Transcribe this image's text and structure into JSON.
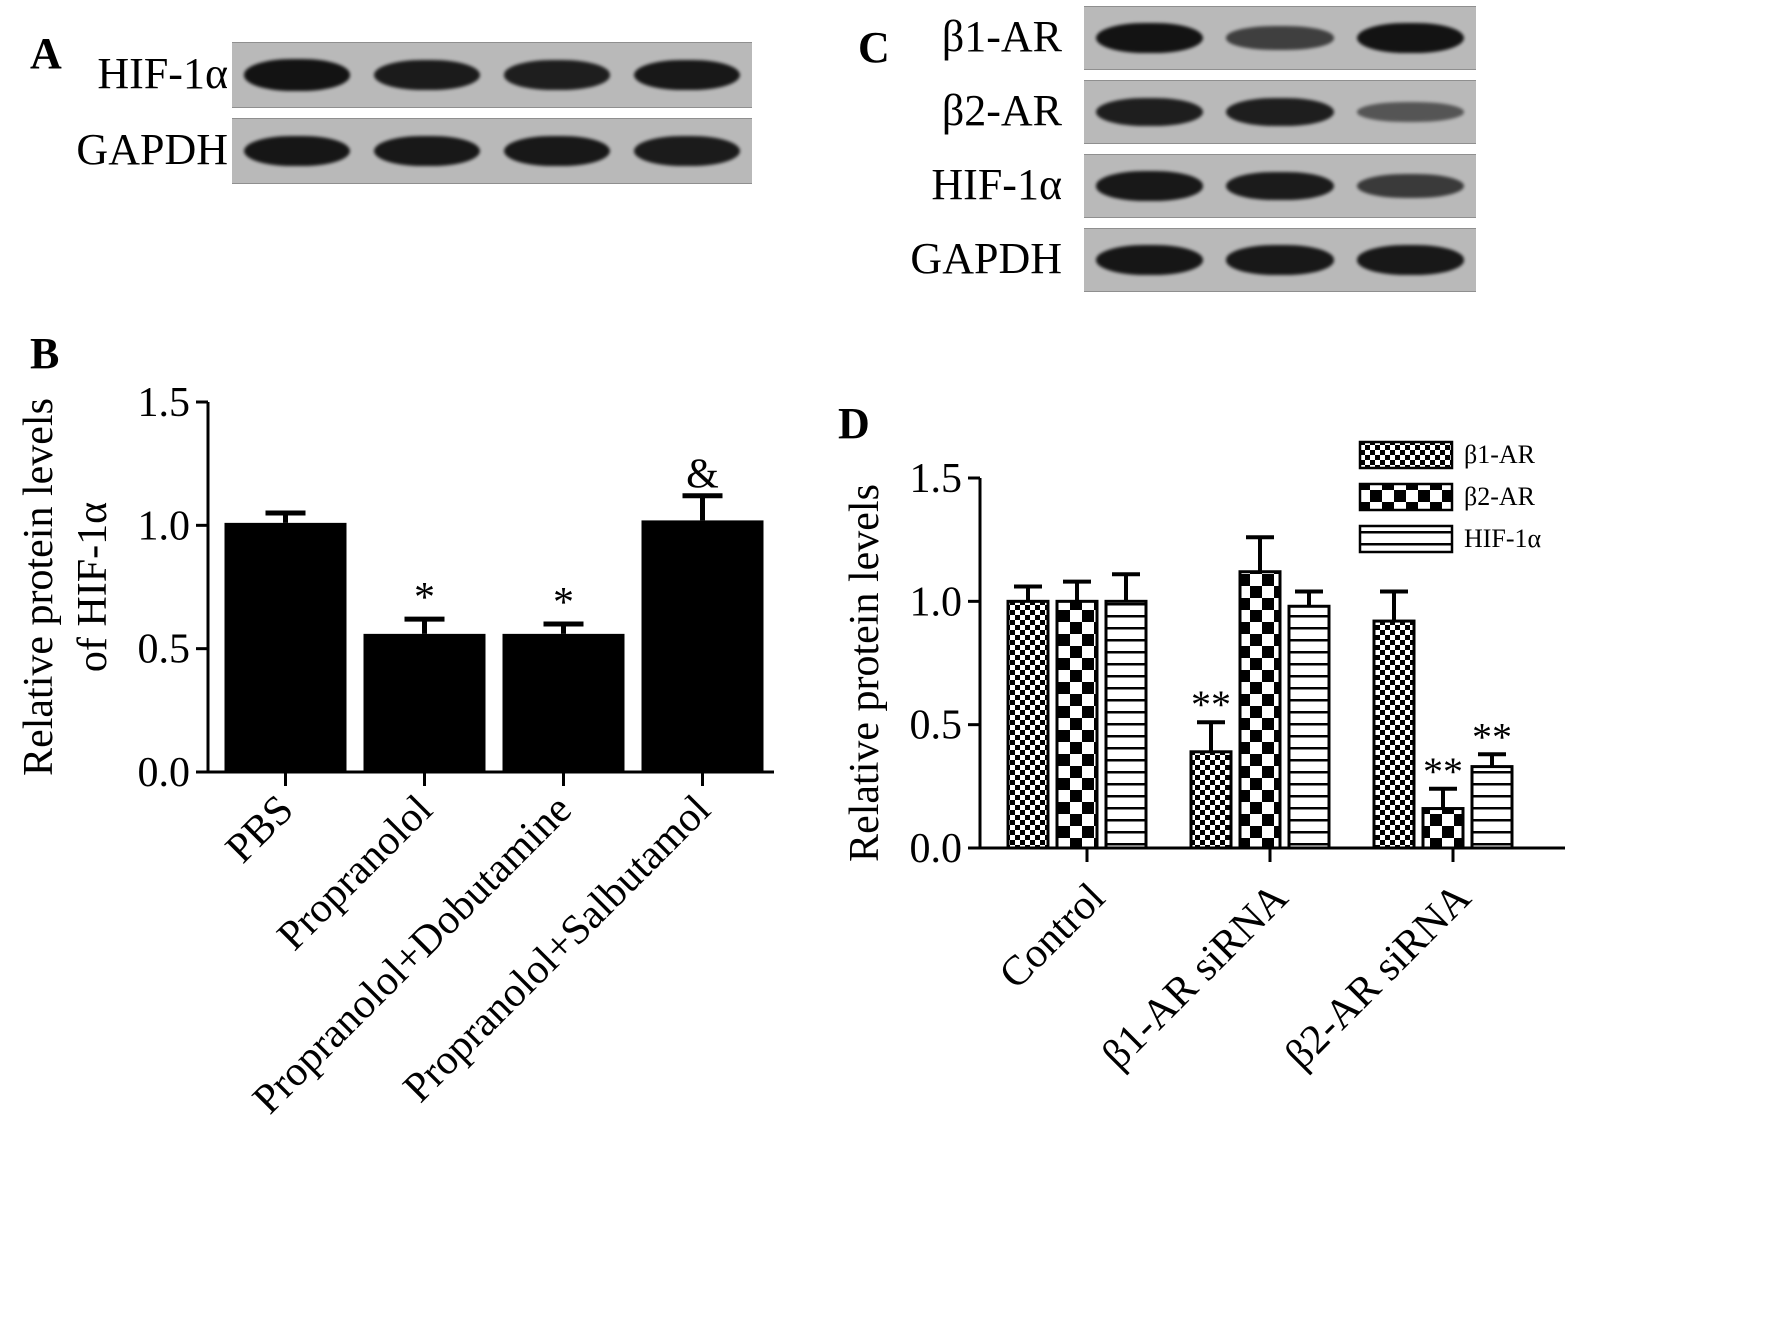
{
  "panels": {
    "A": {
      "letter": "A",
      "rows": [
        {
          "label": "HIF-1α",
          "intensity": [
            0.95,
            0.88,
            0.85,
            0.9
          ]
        },
        {
          "label": "GAPDH",
          "intensity": [
            0.92,
            0.9,
            0.9,
            0.88
          ]
        }
      ]
    },
    "B": {
      "letter": "B"
    },
    "C": {
      "letter": "C",
      "rows": [
        {
          "label": "β1-AR",
          "intensity": [
            0.95,
            0.55,
            0.95
          ]
        },
        {
          "label": "β2-AR",
          "intensity": [
            0.85,
            0.85,
            0.35
          ]
        },
        {
          "label": "HIF-1α",
          "intensity": [
            0.9,
            0.88,
            0.6
          ]
        },
        {
          "label": "GAPDH",
          "intensity": [
            0.92,
            0.9,
            0.9
          ]
        }
      ]
    },
    "D": {
      "letter": "D"
    }
  },
  "chart_data": [
    {
      "panel": "B",
      "type": "bar",
      "categories": [
        "PBS",
        "Propranolol",
        "Propranolol+Dobutamine",
        "Propranolol+Salbutamol"
      ],
      "values": [
        1.01,
        0.56,
        0.56,
        1.02
      ],
      "errors": [
        0.04,
        0.06,
        0.04,
        0.1
      ],
      "annotations": [
        "",
        "*",
        "*",
        "&"
      ],
      "ylabel": [
        "Relative protein levels",
        "of HIF-1α"
      ],
      "ylim": [
        0,
        1.5
      ],
      "yticks": [
        "0.0",
        "0.5",
        "1.0",
        "1.5"
      ],
      "ytick_values": [
        0,
        0.5,
        1.0,
        1.5
      ],
      "bar_color": "#000000",
      "grid": false
    },
    {
      "panel": "D",
      "type": "bar",
      "categories": [
        "Control",
        "β1-AR siRNA",
        "β2-AR siRNA"
      ],
      "series": [
        {
          "name": "β1-AR",
          "pattern": "fine-checker",
          "values": [
            1.0,
            0.39,
            0.92
          ],
          "errors": [
            0.06,
            0.12,
            0.12
          ],
          "annotations": [
            "",
            "**",
            ""
          ]
        },
        {
          "name": "β2-AR",
          "pattern": "coarse-checker",
          "values": [
            1.0,
            1.12,
            0.16
          ],
          "errors": [
            0.08,
            0.14,
            0.08
          ],
          "annotations": [
            "",
            "",
            "**"
          ]
        },
        {
          "name": "HIF-1α",
          "pattern": "horizontal-stripes",
          "values": [
            1.0,
            0.98,
            0.33
          ],
          "errors": [
            0.11,
            0.06,
            0.05
          ],
          "annotations": [
            "",
            "",
            "**"
          ]
        }
      ],
      "ylabel": "Relative protein levels",
      "ylim": [
        0,
        1.5
      ],
      "yticks": [
        "0.0",
        "0.5",
        "1.0",
        "1.5"
      ],
      "ytick_values": [
        0,
        0.5,
        1.0,
        1.5
      ],
      "legend_position": "top-right",
      "grid": false
    }
  ]
}
